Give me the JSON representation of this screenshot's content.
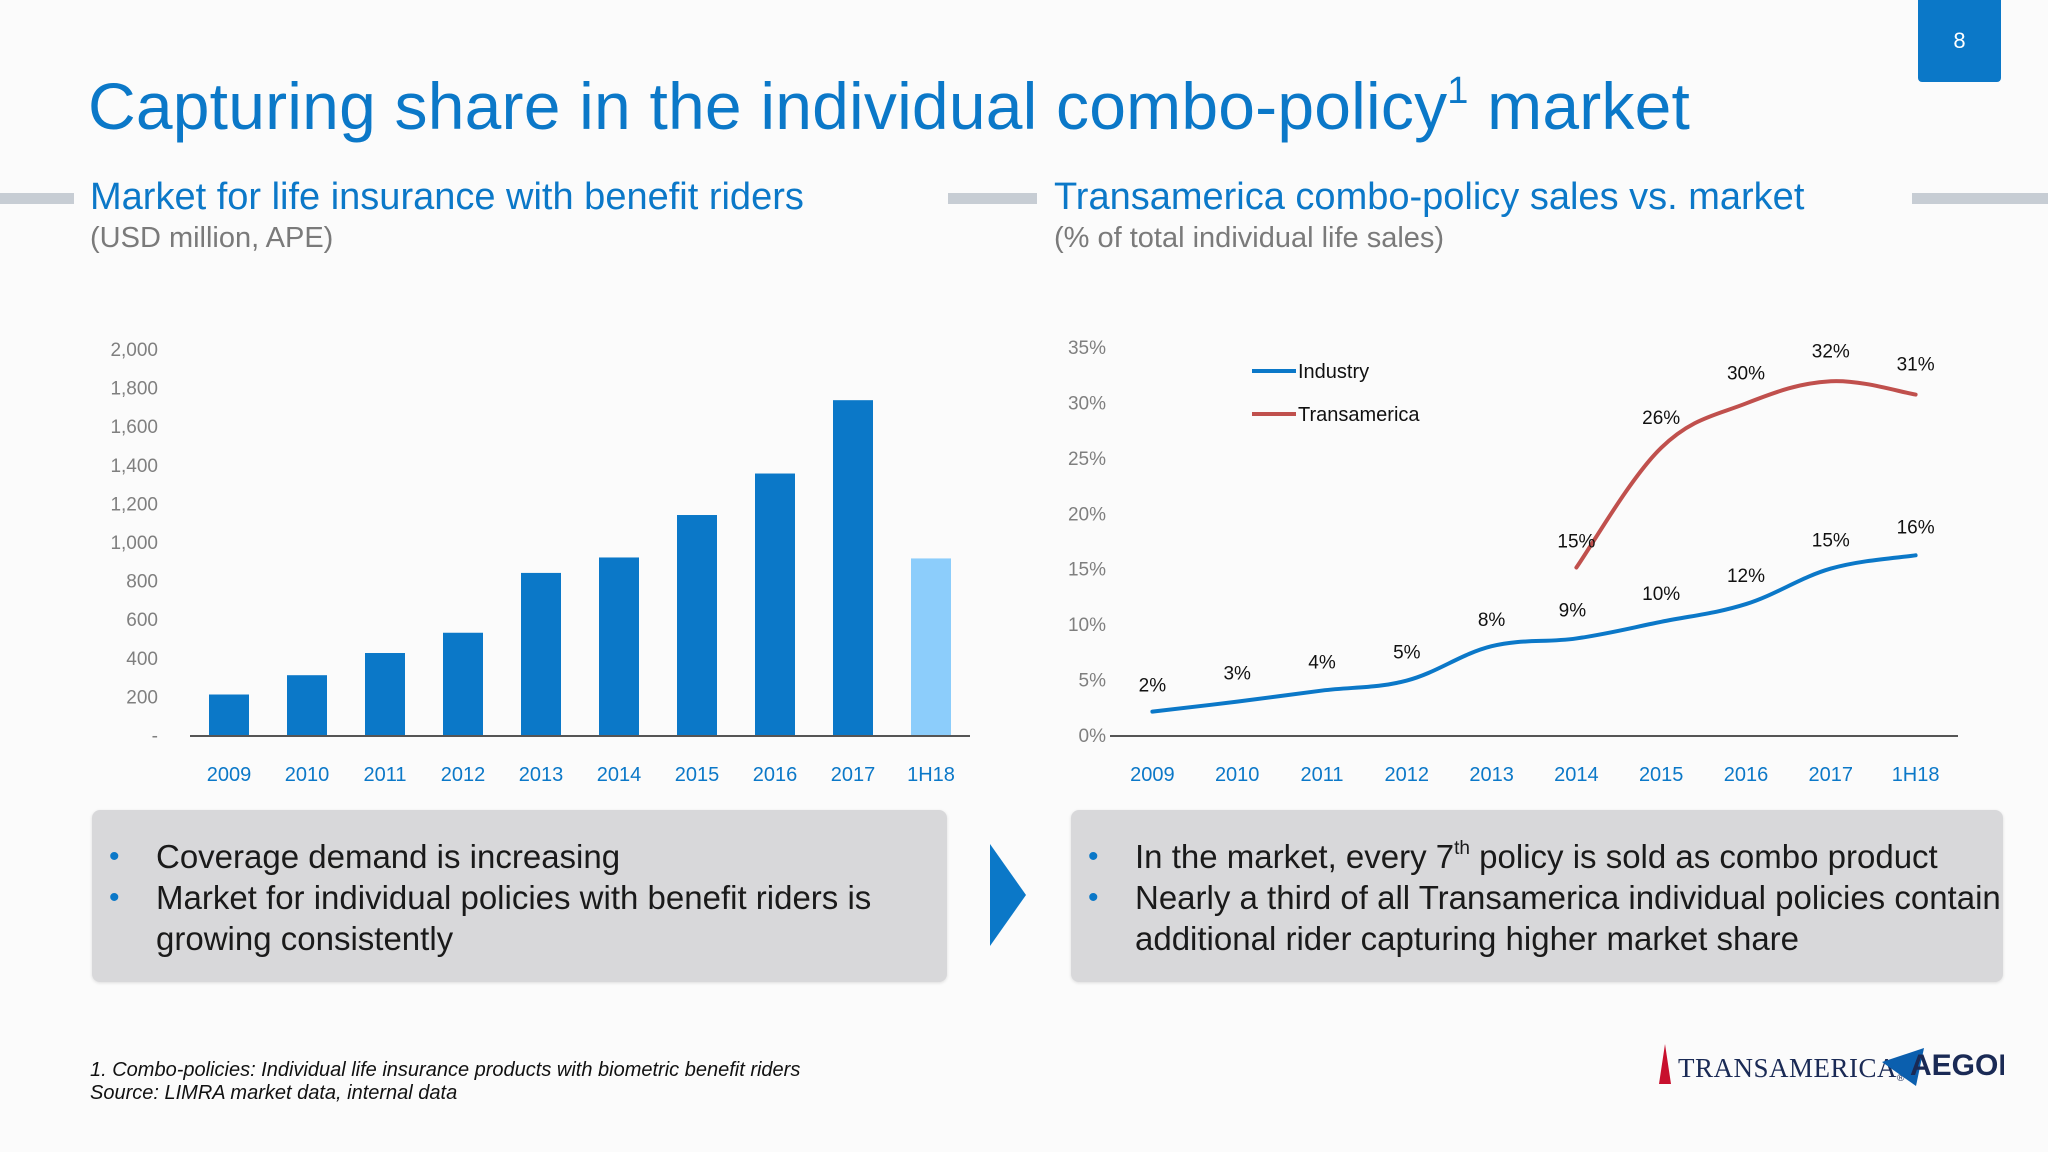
{
  "page_number": "8",
  "title": {
    "text": "Capturing share in the individual combo-policy",
    "sup": "1",
    "tail": "market"
  },
  "left": {
    "heading": "Market for life insurance with benefit riders",
    "subheading": "(USD million, APE)",
    "bullets": [
      "Coverage demand is increasing",
      "Market for individual policies with benefit riders is growing consistently"
    ]
  },
  "right": {
    "heading": "Transamerica combo-policy sales vs. market",
    "subheading": "(% of total individual life sales)",
    "bullets": [
      {
        "pre": "In the market, every 7",
        "sup": "th",
        "post": " policy is sold as combo product"
      },
      {
        "pre": "Nearly a third of all Transamerica individual policies contain additional rider capturing higher market share"
      }
    ]
  },
  "chart_data": [
    {
      "type": "bar",
      "title": "Market for life insurance with benefit riders",
      "ylabel": "USD million, APE",
      "categories": [
        "2009",
        "2010",
        "2011",
        "2012",
        "2013",
        "2014",
        "2015",
        "2016",
        "2017",
        "1H18"
      ],
      "values": [
        215,
        315,
        430,
        535,
        845,
        925,
        1145,
        1360,
        1740,
        920
      ],
      "highlight_last": true,
      "ylim": [
        0,
        2000
      ],
      "yticks": [
        0,
        200,
        400,
        600,
        800,
        1000,
        1200,
        1400,
        1600,
        1800,
        2000
      ],
      "ytick_labels": [
        "-",
        "200",
        "400",
        "600",
        "800",
        "1,000",
        "1,200",
        "1,400",
        "1,600",
        "1,800",
        "2,000"
      ],
      "colors": {
        "bar": "#0b78c8",
        "bar_highlight": "#8ccdfb"
      }
    },
    {
      "type": "line",
      "title": "Transamerica combo-policy sales vs. market",
      "ylabel": "% of total individual life sales",
      "categories": [
        "2009",
        "2010",
        "2011",
        "2012",
        "2013",
        "2014",
        "2015",
        "2016",
        "2017",
        "1H18"
      ],
      "series": [
        {
          "name": "Industry",
          "color": "#0b78c8",
          "values": [
            2.2,
            3.1,
            4.1,
            5.0,
            8.1,
            8.8,
            10.3,
            11.9,
            15.1,
            16.3
          ],
          "labels": [
            "2%",
            "3%",
            "4%",
            "5%",
            "8%",
            "9%",
            "10%",
            "12%",
            "15%",
            "16%"
          ]
        },
        {
          "name": "Transamerica",
          "color": "#c0504d",
          "values": [
            null,
            null,
            null,
            null,
            null,
            15.2,
            26.0,
            30.0,
            32.0,
            30.8
          ],
          "labels": [
            "",
            "",
            "",
            "",
            "",
            "15%",
            "26%",
            "30%",
            "32%",
            "31%"
          ]
        }
      ],
      "ylim": [
        0,
        35
      ],
      "yticks": [
        0,
        5,
        10,
        15,
        20,
        25,
        30,
        35
      ],
      "ytick_labels": [
        "0%",
        "5%",
        "10%",
        "15%",
        "20%",
        "25%",
        "30%",
        "35%"
      ],
      "legend": "top-left"
    }
  ],
  "footnotes": [
    "1. Combo-policies: Individual life insurance products with biometric benefit riders",
    "Source: LIMRA market data, internal data"
  ],
  "logos": {
    "transamerica": "TRANSAMERICA",
    "aegon": "AEGON",
    "registered": "®"
  }
}
